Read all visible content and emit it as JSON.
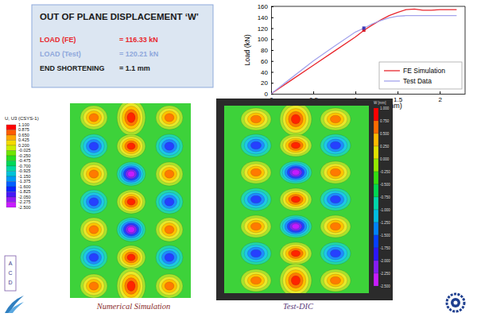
{
  "chart_data": {
    "type": "line",
    "xlabel": "End Shortening (mm)",
    "ylabel": "Load (kN)",
    "x": [
      0,
      0.25,
      0.5,
      0.75,
      1.0,
      1.1,
      1.2,
      1.3,
      1.4,
      1.5,
      1.6,
      1.7,
      1.8,
      1.9,
      2.0,
      2.1,
      2.2
    ],
    "series": [
      {
        "name": "FE Simulation",
        "color": "#e8262d",
        "values": [
          0,
          26,
          52,
          78,
          104,
          116,
          126,
          135,
          143,
          149,
          154,
          155,
          153,
          153,
          154,
          154,
          154
        ]
      },
      {
        "name": "Test Data",
        "color": "#a3a3ec",
        "values": [
          0,
          30,
          60,
          87,
          113,
          120,
          128,
          134,
          139,
          142,
          143,
          143,
          143,
          143,
          143,
          143,
          143
        ]
      }
    ],
    "points": [
      {
        "x": 1.1,
        "y": 116.33,
        "color": "#d81e2a"
      },
      {
        "x": 1.1,
        "y": 120.21,
        "color": "#3b3bb8"
      }
    ],
    "xlim": [
      0,
      2.3
    ],
    "ylim": [
      0,
      160
    ],
    "xticks": [
      0,
      0.5,
      1,
      1.5,
      2
    ],
    "yticks": [
      0,
      20,
      40,
      60,
      80,
      100,
      120,
      140,
      160
    ],
    "grid": false,
    "legend": "lower right"
  },
  "text_box": {
    "title": "OUT OF PLANE DISPLACEMENT ‘W’",
    "rows": [
      {
        "label": "LOAD (FE)",
        "value": "= 116.33 kN",
        "color": "#e8262d"
      },
      {
        "label": "LOAD (Test)",
        "value": "= 120.21 kN",
        "color": "#8fa8dc"
      },
      {
        "label": "END SHORTENING",
        "value": "= 1.1 mm",
        "color": "#1a1a1a"
      }
    ]
  },
  "contours": [
    {
      "caption": "Numerical Simulation",
      "caption_color": "#8b2c2c",
      "colorbar_title": "U, U3 (CSYS-1)",
      "colorbar_labels": [
        "1.100",
        "0.875",
        "0.650",
        "0.425",
        "0.200",
        "-0.025",
        "-0.250",
        "-0.475",
        "-0.700",
        "-0.925",
        "-1.150",
        "-1.375",
        "-1.600",
        "-1.825",
        "-2.050",
        "-2.275",
        "-2.500"
      ]
    },
    {
      "caption": "Test-DIC",
      "caption_color": "#5a3a7a",
      "colorbar_title": "W [mm]",
      "colorbar_labels": [
        "1.000",
        "0.750",
        "0.500",
        "0.250",
        "0.000",
        "-0.250",
        "-0.500",
        "-0.750",
        "-1.000",
        "-1.250",
        "-1.500",
        "-1.750",
        "-2.000",
        "-2.250",
        "-2.500"
      ]
    }
  ],
  "logo": {
    "letters": [
      "A",
      "C",
      "D"
    ]
  }
}
